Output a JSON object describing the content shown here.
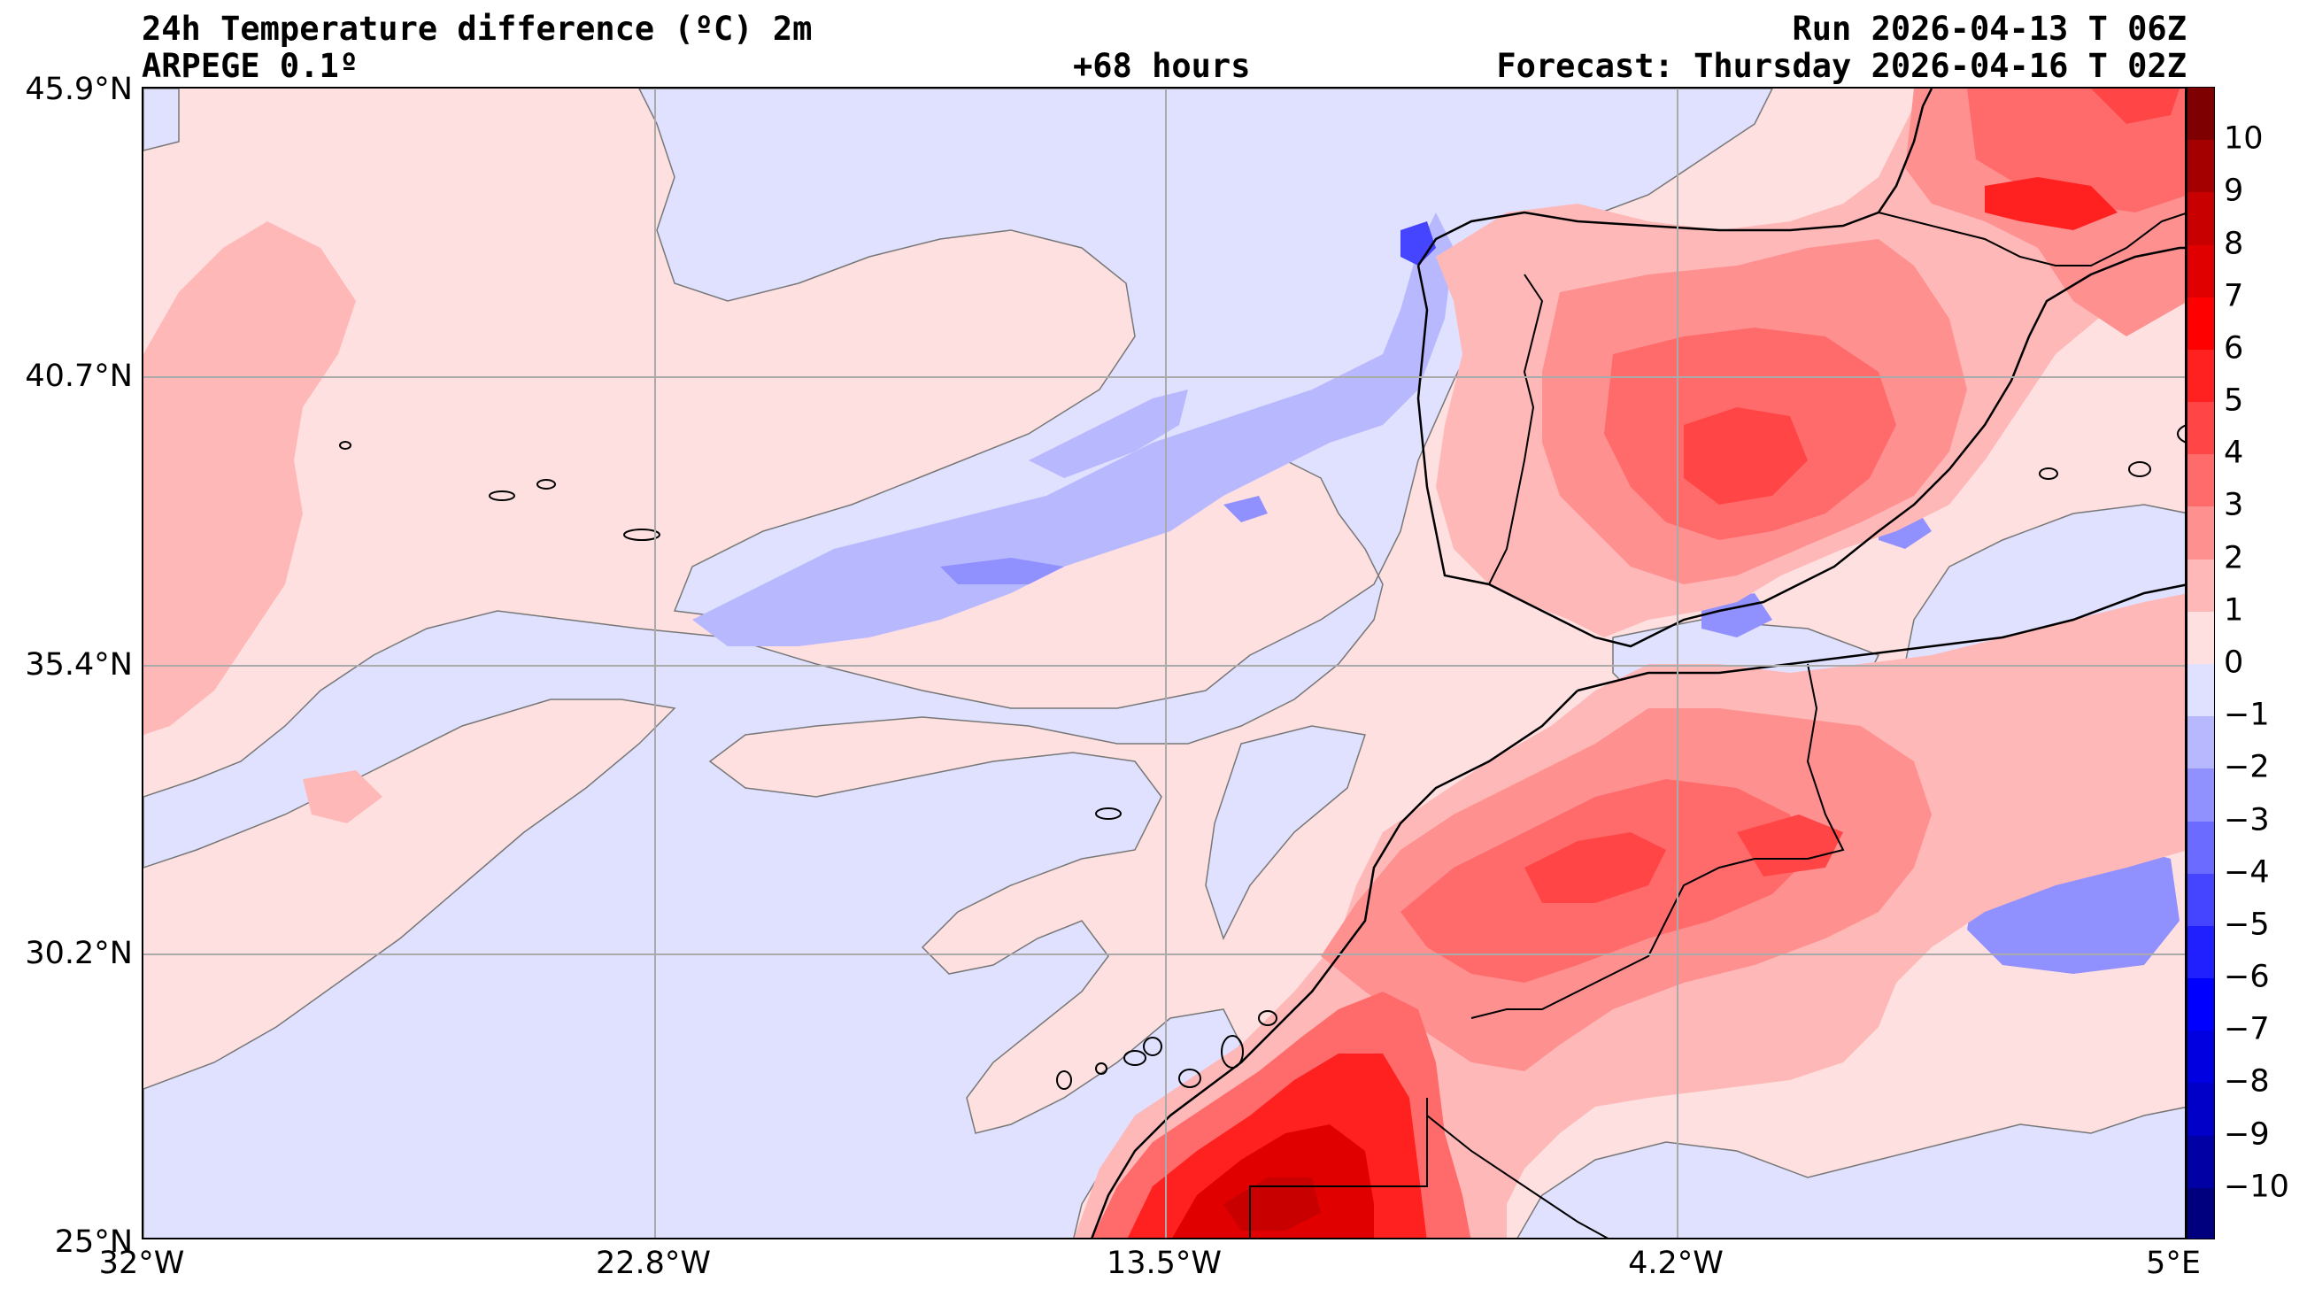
{
  "header": {
    "title": "24h Temperature difference (ºC) 2m",
    "model": "ARPEGE 0.1º",
    "lead_time": "+68 hours",
    "run": "Run 2026-04-13 T 06Z",
    "forecast": "Forecast: Thursday 2026-04-16 T 02Z"
  },
  "axes": {
    "y_ticks": [
      "45.9°N",
      "40.7°N",
      "35.4°N",
      "30.2°N",
      "25°N"
    ],
    "x_ticks": [
      "32°W",
      "22.8°W",
      "13.5°W",
      "4.2°W",
      "5°E"
    ]
  },
  "colorbar": {
    "labels": [
      "10",
      "9",
      "8",
      "7",
      "6",
      "5",
      "4",
      "3",
      "2",
      "1",
      "0",
      "−1",
      "−2",
      "−3",
      "−4",
      "−5",
      "−6",
      "−7",
      "−8",
      "−9",
      "−10"
    ],
    "colors_top_to_bottom": [
      "#7f0000",
      "#a50000",
      "#c80000",
      "#e10000",
      "#ff0000",
      "#ff2020",
      "#ff4545",
      "#ff6b6b",
      "#ff9090",
      "#ffb8b8",
      "#ffe0e0",
      "#e0e0ff",
      "#b8b8ff",
      "#9090ff",
      "#6b6bff",
      "#4545ff",
      "#2020ff",
      "#0000ff",
      "#0000e1",
      "#0000c8",
      "#0000a5",
      "#00007f"
    ]
  },
  "colors": {
    "pos1": "#ffe0e0",
    "pos2": "#ffb8b8",
    "pos3": "#ff9090",
    "pos4": "#ff6b6b",
    "pos5": "#ff4545",
    "pos6": "#ff2020",
    "pos7": "#e10000",
    "pos8": "#c80000",
    "neg1": "#e0e0ff",
    "neg2": "#b8b8ff",
    "neg3": "#9090ff",
    "neg4": "#6b6bff",
    "neg5": "#4545ff"
  }
}
